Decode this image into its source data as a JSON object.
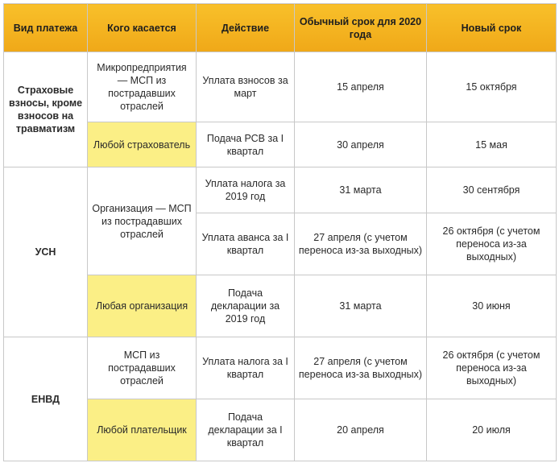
{
  "headers": {
    "payment_type": "Вид платежа",
    "applies_to": "Кого касается",
    "action": "Действие",
    "usual_deadline": "Обычный срок для 2020 года",
    "new_deadline": "Новый срок"
  },
  "insurance": {
    "group": "Страховые взносы, кроме взносов на травматизм",
    "rows": [
      {
        "who": "Микропредприятия — МСП из пострадавших отраслей",
        "action": "Уплата взносов за март",
        "usual": "15 апреля",
        "new": "15 октября"
      },
      {
        "who": "Любой страхователь",
        "action": "Подача РСВ за I квартал",
        "usual": "30 апреля",
        "new": "15 мая"
      }
    ]
  },
  "usn": {
    "group": "УСН",
    "who_1": "Организация — МСП из пострадавших отраслей",
    "rows": [
      {
        "action": "Уплата налога за 2019 год",
        "usual": "31 марта",
        "new": "30 сентября"
      },
      {
        "action": "Уплата аванса за I квартал",
        "usual": "27 апреля (с учетом переноса из-за выходных)",
        "new": "26 октября (с учетом переноса из-за выходных)"
      }
    ],
    "row3": {
      "who": "Любая организация",
      "action": "Подача декларации за 2019 год",
      "usual": "31 марта",
      "new": "30 июня"
    }
  },
  "envd": {
    "group": "ЕНВД",
    "rows": [
      {
        "who": "МСП из пострадавших отраслей",
        "action": "Уплата налога за I квартал",
        "usual": "27 апреля (с учетом переноса из-за выходных)",
        "new": "26 октября (с учетом переноса из-за выходных)"
      },
      {
        "who": "Любой плательщик",
        "action": "Подача декларации за I квартал",
        "usual": "20 апреля",
        "new": "20 июля"
      }
    ]
  }
}
